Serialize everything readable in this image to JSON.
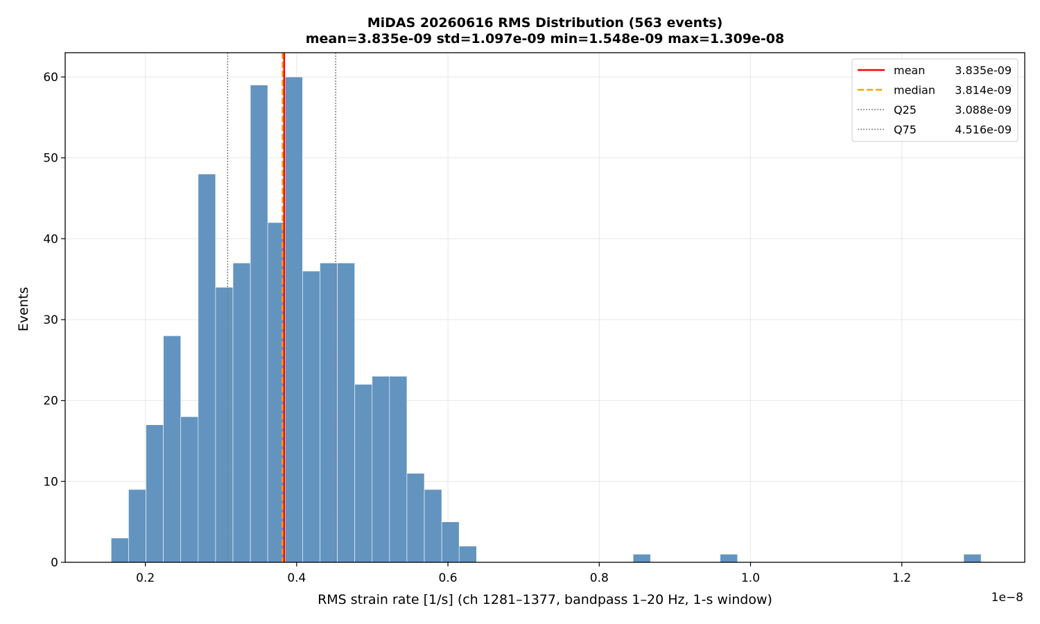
{
  "chart_data": {
    "type": "bar",
    "title": "MiDAS 20260616  RMS Distribution  (563 events)",
    "subtitle": "mean=3.835e-09  std=1.097e-09  min=1.548e-09  max=1.309e-08",
    "xlabel": "RMS strain rate [1/s]  (ch 1281–1377, bandpass 1–20 Hz, 1-s window)",
    "ylabel": "Events",
    "x_offset_label": "1e−8",
    "xlim": [
      0.094,
      1.3625
    ],
    "ylim": [
      0,
      63
    ],
    "x_ticks": [
      0.2,
      0.4,
      0.6,
      0.8,
      1.0,
      1.2
    ],
    "x_tick_labels": [
      "0.2",
      "0.4",
      "0.6",
      "0.8",
      "1.0",
      "1.2"
    ],
    "y_ticks": [
      0,
      10,
      20,
      30,
      40,
      50,
      60
    ],
    "y_tick_labels": [
      "0",
      "10",
      "20",
      "30",
      "40",
      "50",
      "60"
    ],
    "grid": true,
    "legend_position": "top-right",
    "bar_color": "#6394c0",
    "bin_start": 0.1548,
    "bin_width": 0.023,
    "values": [
      3,
      9,
      17,
      28,
      18,
      48,
      34,
      37,
      59,
      42,
      60,
      36,
      37,
      37,
      22,
      23,
      23,
      11,
      9,
      5,
      2,
      0,
      0,
      0,
      0,
      0,
      0,
      0,
      0,
      0,
      1,
      0,
      0,
      0,
      0,
      1,
      0,
      0,
      0,
      0,
      0,
      0,
      0,
      0,
      0,
      0,
      0,
      0,
      0,
      1
    ],
    "reference_lines": [
      {
        "name": "mean",
        "value_label": "3.835e-09",
        "x": 0.3835,
        "color": "#ff0000",
        "style": "solid"
      },
      {
        "name": "median",
        "value_label": "3.814e-09",
        "x": 0.3814,
        "color": "#ffa500",
        "style": "dashed"
      },
      {
        "name": "Q25",
        "value_label": "3.088e-09",
        "x": 0.3088,
        "color": "#808080",
        "style": "dotted"
      },
      {
        "name": "Q75",
        "value_label": "4.516e-09",
        "x": 0.4516,
        "color": "#808080",
        "style": "dotted"
      }
    ],
    "legend": [
      {
        "name": "mean",
        "value_label": "3.835e-09"
      },
      {
        "name": "median",
        "value_label": "3.814e-09"
      },
      {
        "name": "Q25",
        "value_label": "3.088e-09"
      },
      {
        "name": "Q75",
        "value_label": "4.516e-09"
      }
    ]
  }
}
